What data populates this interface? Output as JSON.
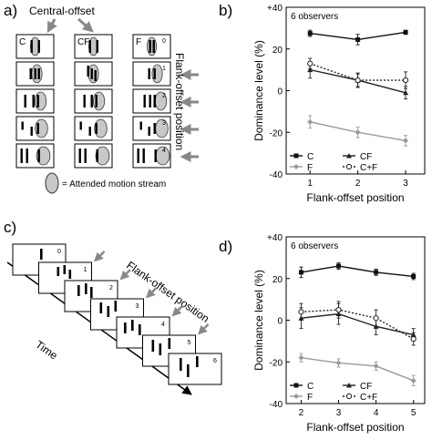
{
  "panels": {
    "a": {
      "label": "a)",
      "central_offset_label": "Central-offset",
      "column_labels": [
        "C",
        "CF",
        "F"
      ],
      "row_numbers": [
        "0",
        "1",
        "2",
        "3",
        "4"
      ],
      "side_label": "Flank-offset position",
      "legend_text": "= Attended motion stream"
    },
    "b": {
      "label": "b)"
    },
    "c": {
      "label": "c)",
      "frame_numbers": [
        "0",
        "1",
        "2",
        "3",
        "4",
        "5",
        "6"
      ],
      "diag_label": "Flank-offset position",
      "time_label": "Time"
    },
    "d": {
      "label": "d)"
    }
  },
  "chart_data": [
    {
      "id": "b",
      "type": "line",
      "annotation": "6 observers",
      "xlabel": "Flank-offset position",
      "ylabel": "Dominance level (%)",
      "x": [
        1,
        2,
        3
      ],
      "xlim": [
        0.5,
        3.4
      ],
      "ylim": [
        -40,
        40
      ],
      "yticks": [
        -40,
        -20,
        0,
        20,
        40
      ],
      "ytick_labels": [
        "-40",
        "-20",
        "0",
        "20",
        "+40"
      ],
      "series": [
        {
          "name": "C",
          "values": [
            27.5,
            24.5,
            28
          ],
          "err": [
            1.5,
            2.5,
            1
          ],
          "marker": "square",
          "line": "solid",
          "color": "#111111"
        },
        {
          "name": "CF",
          "values": [
            10,
            5,
            -1
          ],
          "err": [
            4,
            3.5,
            3
          ],
          "marker": "triangle",
          "line": "solid",
          "color": "#222222"
        },
        {
          "name": "F",
          "values": [
            -15,
            -20,
            -24
          ],
          "err": [
            3,
            2.5,
            2.5
          ],
          "marker": "diamond",
          "line": "solid",
          "color": "#999999"
        },
        {
          "name": "C+F",
          "values": [
            13,
            5,
            5
          ],
          "err": [
            2.5,
            3,
            4
          ],
          "marker": "circle",
          "line": "dotted",
          "color": "#222222"
        }
      ]
    },
    {
      "id": "d",
      "type": "line",
      "annotation": "6 observers",
      "xlabel": "Flank-offset position",
      "ylabel": "Dominance level (%)",
      "x": [
        2,
        3,
        4,
        5
      ],
      "xlim": [
        1.6,
        5.3
      ],
      "ylim": [
        -40,
        40
      ],
      "yticks": [
        -40,
        -20,
        0,
        20,
        40
      ],
      "ytick_labels": [
        "-40",
        "-20",
        "0",
        "20",
        "+40"
      ],
      "series": [
        {
          "name": "C",
          "values": [
            23,
            26,
            23,
            21
          ],
          "err": [
            2.5,
            1.5,
            1.5,
            1.5
          ],
          "marker": "square",
          "line": "solid",
          "color": "#111111"
        },
        {
          "name": "CF",
          "values": [
            1,
            3,
            -3,
            -7
          ],
          "err": [
            5,
            5,
            4,
            3
          ],
          "marker": "triangle",
          "line": "solid",
          "color": "#222222"
        },
        {
          "name": "F",
          "values": [
            -18,
            -20.5,
            -22,
            -29
          ],
          "err": [
            2,
            2,
            2,
            2.5
          ],
          "marker": "diamond",
          "line": "solid",
          "color": "#999999"
        },
        {
          "name": "C+F",
          "values": [
            4,
            5,
            1,
            -9
          ],
          "err": [
            4,
            4,
            4,
            3
          ],
          "marker": "circle",
          "line": "dotted",
          "color": "#222222"
        }
      ]
    }
  ]
}
